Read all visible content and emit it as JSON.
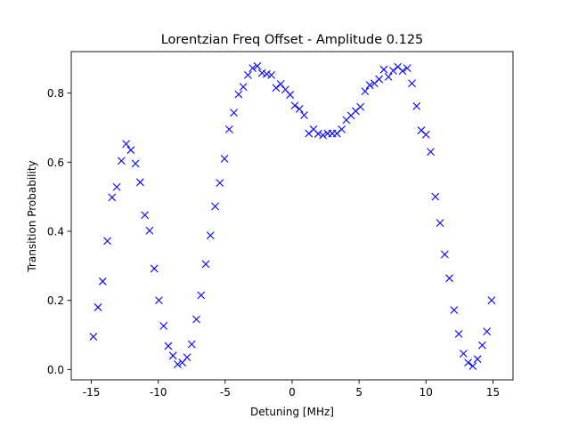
{
  "chart_data": {
    "type": "scatter",
    "title": "Lorentzian Freq Offset - Amplitude 0.125",
    "xlabel": "Detuning [MHz]",
    "ylabel": "Transition Probability",
    "xlim": [
      -16.5,
      16.5
    ],
    "ylim": [
      -0.03,
      0.92
    ],
    "xticks": [
      -15,
      -10,
      -5,
      0,
      5,
      10,
      15
    ],
    "yticks": [
      0.0,
      0.2,
      0.4,
      0.6,
      0.8
    ],
    "ytick_labels": [
      "0.0",
      "0.2",
      "0.4",
      "0.6",
      "0.8"
    ],
    "grid": false,
    "marker": "x",
    "color": "#0000ff",
    "x": [
      -14.85,
      -14.5,
      -14.15,
      -13.8,
      -13.45,
      -13.1,
      -12.75,
      -12.4,
      -12.05,
      -11.7,
      -11.35,
      -11.0,
      -10.65,
      -10.3,
      -9.95,
      -9.6,
      -9.25,
      -8.9,
      -8.55,
      -8.2,
      -7.85,
      -7.5,
      -7.15,
      -6.8,
      -6.45,
      -6.1,
      -5.75,
      -5.4,
      -5.05,
      -4.7,
      -4.35,
      -4.0,
      -3.65,
      -3.3,
      -2.95,
      -2.6,
      -2.25,
      -1.9,
      -1.55,
      -1.2,
      -0.85,
      -0.5,
      -0.15,
      0.2,
      0.55,
      0.9,
      1.25,
      1.6,
      1.95,
      2.3,
      2.65,
      3.0,
      3.35,
      3.7,
      4.05,
      4.4,
      4.75,
      5.1,
      5.45,
      5.8,
      6.15,
      6.5,
      6.85,
      7.2,
      7.55,
      7.9,
      8.25,
      8.6,
      8.95,
      9.3,
      9.65,
      10.0,
      10.35,
      10.7,
      11.05,
      11.4,
      11.75,
      12.1,
      12.45,
      12.8,
      13.15,
      13.5,
      13.85,
      14.2,
      14.55,
      14.9
    ],
    "y": [
      0.095,
      0.18,
      0.255,
      0.372,
      0.498,
      0.528,
      0.604,
      0.653,
      0.635,
      0.596,
      0.542,
      0.447,
      0.402,
      0.292,
      0.2,
      0.126,
      0.068,
      0.04,
      0.015,
      0.02,
      0.035,
      0.073,
      0.145,
      0.215,
      0.305,
      0.388,
      0.472,
      0.54,
      0.61,
      0.695,
      0.743,
      0.796,
      0.818,
      0.852,
      0.872,
      0.878,
      0.858,
      0.855,
      0.852,
      0.815,
      0.826,
      0.81,
      0.795,
      0.764,
      0.754,
      0.736,
      0.683,
      0.695,
      0.682,
      0.678,
      0.683,
      0.683,
      0.683,
      0.695,
      0.722,
      0.735,
      0.748,
      0.76,
      0.805,
      0.823,
      0.828,
      0.84,
      0.868,
      0.847,
      0.865,
      0.876,
      0.864,
      0.872,
      0.828,
      0.762,
      0.692,
      0.68,
      0.63,
      0.5,
      0.424,
      0.333,
      0.264,
      0.172,
      0.103,
      0.046,
      0.02,
      0.01,
      0.03,
      0.07,
      0.11,
      0.2
    ]
  }
}
